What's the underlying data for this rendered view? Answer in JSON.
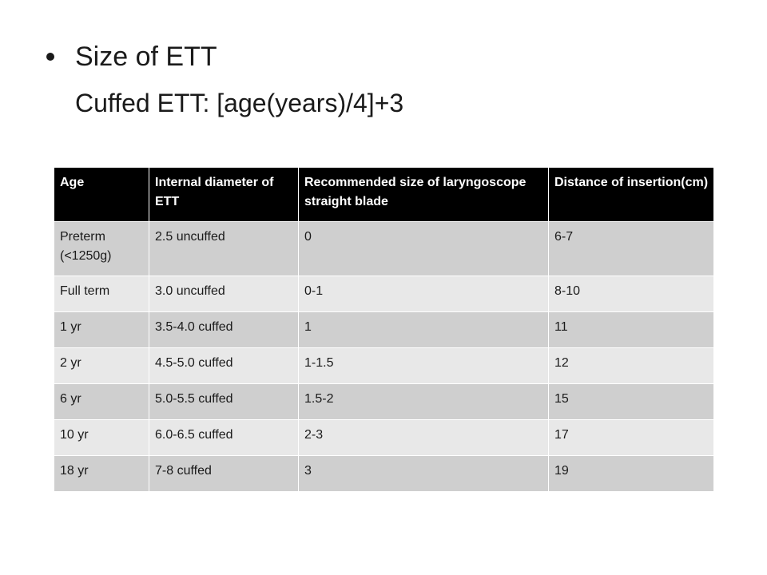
{
  "slide": {
    "title": "Size of ETT",
    "subtitle": "Cuffed ETT: [age(years)/4]+3"
  },
  "table": {
    "headers": [
      "Age",
      "Internal diameter of ETT",
      "Recommended size of laryngoscope straight blade",
      "Distance of insertion(cm)"
    ],
    "rows": [
      [
        "Preterm (<1250g)",
        "2.5 uncuffed",
        "0",
        "6-7"
      ],
      [
        "Full term",
        "3.0 uncuffed",
        "0-1",
        "8-10"
      ],
      [
        "1 yr",
        "3.5-4.0 cuffed",
        "1",
        "11"
      ],
      [
        "2 yr",
        "4.5-5.0 cuffed",
        "1-1.5",
        "12"
      ],
      [
        "6 yr",
        "5.0-5.5 cuffed",
        "1.5-2",
        "15"
      ],
      [
        "10 yr",
        "6.0-6.5 cuffed",
        "2-3",
        "17"
      ],
      [
        "18 yr",
        "7-8 cuffed",
        "3",
        "19"
      ]
    ]
  }
}
